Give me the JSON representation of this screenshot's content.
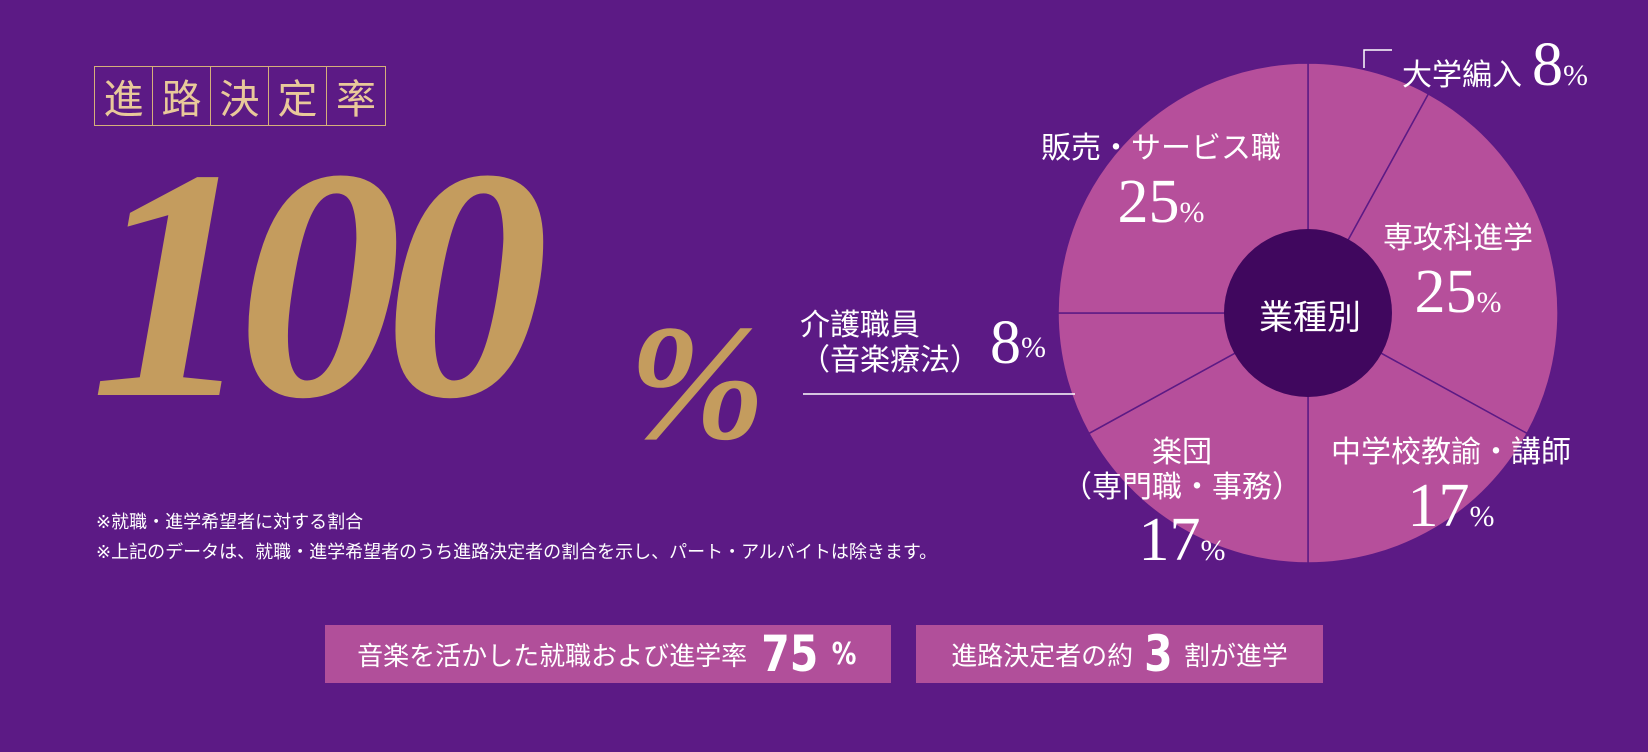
{
  "title_chars": [
    "進",
    "路",
    "決",
    "定",
    "率"
  ],
  "rate": {
    "value": "100",
    "unit": "%"
  },
  "notes": [
    "※就職・進学希望者に対する割合",
    "※上記のデータは、就職・進学希望者のうち進路決定者の割合を示し、パート・アルバイトは除きます。"
  ],
  "pills": {
    "music": {
      "text": "音楽を活かした就職および進学率",
      "value": "75",
      "unit": "%"
    },
    "advance": {
      "prefix": "進路決定者の約",
      "value": "3",
      "suffix": "割が進学"
    }
  },
  "chart_data": {
    "type": "pie",
    "center_label": "業種別",
    "unit": "%",
    "slices": [
      {
        "label": "大学編入",
        "value": 8
      },
      {
        "label": "専攻科進学",
        "value": 25
      },
      {
        "label": "中学校教諭・講師",
        "value": 17
      },
      {
        "label": "楽団\n（専門職・事務）",
        "value": 17
      },
      {
        "label": "介護職員\n（音楽療法）",
        "value": 8
      },
      {
        "label": "販売・サービス職",
        "value": 25
      }
    ],
    "colors": {
      "slice": "#b64f9b",
      "center": "#40075e",
      "line": "#5c1a85"
    }
  }
}
